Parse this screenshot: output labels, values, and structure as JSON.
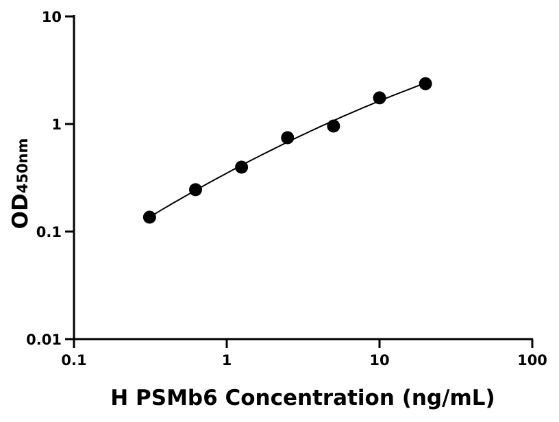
{
  "chart_data": {
    "type": "scatter",
    "title": "",
    "xlabel": "H PSMb6 Concentration (ng/mL)",
    "ylabel": "OD",
    "ylabel_subscript": "450nm",
    "xscale": "log",
    "yscale": "log",
    "xlim": [
      0.1,
      100
    ],
    "ylim": [
      0.01,
      10
    ],
    "xticks": [
      0.1,
      1,
      10,
      100
    ],
    "xtick_labels": [
      "0.1",
      "1",
      "10",
      "100"
    ],
    "yticks": [
      0.01,
      0.1,
      1,
      10
    ],
    "ytick_labels": [
      "0.01",
      "0.1",
      "1",
      "10"
    ],
    "grid": false,
    "series": [
      {
        "x": [
          0.3125,
          0.625,
          1.25,
          2.5,
          5,
          10,
          20
        ],
        "y": [
          0.136,
          0.245,
          0.397,
          0.746,
          0.957,
          1.75,
          2.37
        ],
        "marker": "circle",
        "color": "#000000",
        "fit_line": true
      }
    ]
  }
}
